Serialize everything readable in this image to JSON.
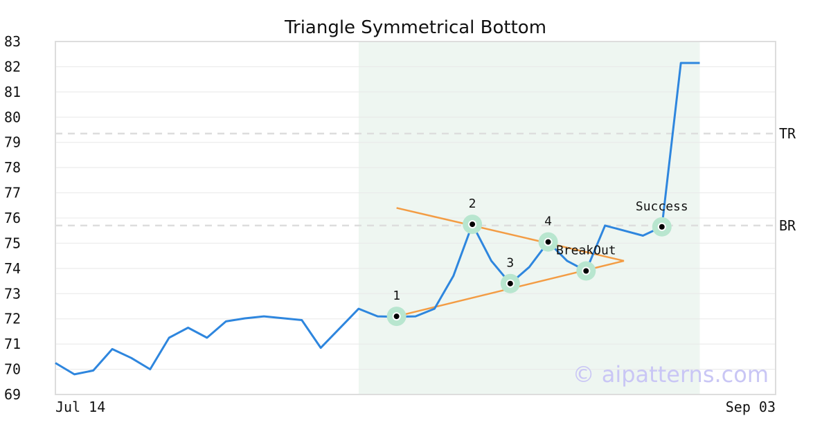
{
  "chart_data": {
    "type": "line",
    "title": "Triangle Symmetrical Bottom",
    "xlabel": "",
    "ylabel": "",
    "ylim": [
      69,
      83
    ],
    "y_ticks": [
      69,
      70,
      71,
      72,
      73,
      74,
      75,
      76,
      77,
      78,
      79,
      80,
      81,
      82,
      83
    ],
    "x_tick_labels": [
      "Jul 14",
      "Sep 03"
    ],
    "x_range_days": [
      0,
      38
    ],
    "grid": "horizontal",
    "pattern_region": {
      "start_day": 16,
      "end_day": 34,
      "color": "#eef6f1"
    },
    "series": [
      {
        "color": "#2e86de",
        "points": [
          {
            "x": 0,
            "y": 70.25
          },
          {
            "x": 1,
            "y": 69.8
          },
          {
            "x": 2,
            "y": 69.95
          },
          {
            "x": 3,
            "y": 70.8
          },
          {
            "x": 4,
            "y": 70.45
          },
          {
            "x": 5,
            "y": 70.0
          },
          {
            "x": 6,
            "y": 71.25
          },
          {
            "x": 7,
            "y": 71.65
          },
          {
            "x": 8,
            "y": 71.25
          },
          {
            "x": 9,
            "y": 71.9
          },
          {
            "x": 10,
            "y": 72.02
          },
          {
            "x": 11,
            "y": 72.1
          },
          {
            "x": 13,
            "y": 71.95
          },
          {
            "x": 14,
            "y": 70.85
          },
          {
            "x": 16,
            "y": 72.4
          },
          {
            "x": 17,
            "y": 72.1
          },
          {
            "x": 18,
            "y": 72.08
          },
          {
            "x": 19,
            "y": 72.1
          },
          {
            "x": 20,
            "y": 72.4
          },
          {
            "x": 21,
            "y": 73.7
          },
          {
            "x": 22,
            "y": 75.75
          },
          {
            "x": 23,
            "y": 74.3
          },
          {
            "x": 24,
            "y": 73.4
          },
          {
            "x": 25,
            "y": 74.05
          },
          {
            "x": 26,
            "y": 75.05
          },
          {
            "x": 27,
            "y": 74.3
          },
          {
            "x": 28,
            "y": 73.9
          },
          {
            "x": 29,
            "y": 75.7
          },
          {
            "x": 30,
            "y": 75.5
          },
          {
            "x": 31,
            "y": 75.3
          },
          {
            "x": 32,
            "y": 75.65
          },
          {
            "x": 33,
            "y": 82.15
          },
          {
            "x": 34,
            "y": 82.15
          }
        ]
      }
    ],
    "trend_lines": [
      {
        "color": "#f39c44",
        "from": {
          "x": 18,
          "y": 76.4
        },
        "to": {
          "x": 30,
          "y": 74.3
        }
      },
      {
        "color": "#f39c44",
        "from": {
          "x": 18,
          "y": 72.1
        },
        "to": {
          "x": 30,
          "y": 74.3
        }
      }
    ],
    "reference_lines": [
      {
        "label": "TR",
        "y": 79.35,
        "color": "#dddddd"
      },
      {
        "label": "BR",
        "y": 75.7,
        "color": "#dddddd"
      }
    ],
    "annotations": [
      {
        "label": "1",
        "x": 18,
        "y": 72.1,
        "label_side": "above"
      },
      {
        "label": "2",
        "x": 22,
        "y": 75.75,
        "label_side": "above"
      },
      {
        "label": "3",
        "x": 24,
        "y": 73.4,
        "label_side": "above"
      },
      {
        "label": "4",
        "x": 26,
        "y": 75.05,
        "label_side": "above"
      },
      {
        "label": "BreakOut",
        "x": 28,
        "y": 73.9,
        "label_side": "above"
      },
      {
        "label": "Success",
        "x": 32,
        "y": 75.65,
        "label_side": "above"
      }
    ],
    "marker_colors": {
      "halo": "#b8e6cf",
      "dot": "#000000",
      "dot_stroke": "#ffffff"
    },
    "watermark": "© aipatterns.com",
    "frame_color": "#dddddd",
    "grid_color": "#e8e8e8"
  }
}
